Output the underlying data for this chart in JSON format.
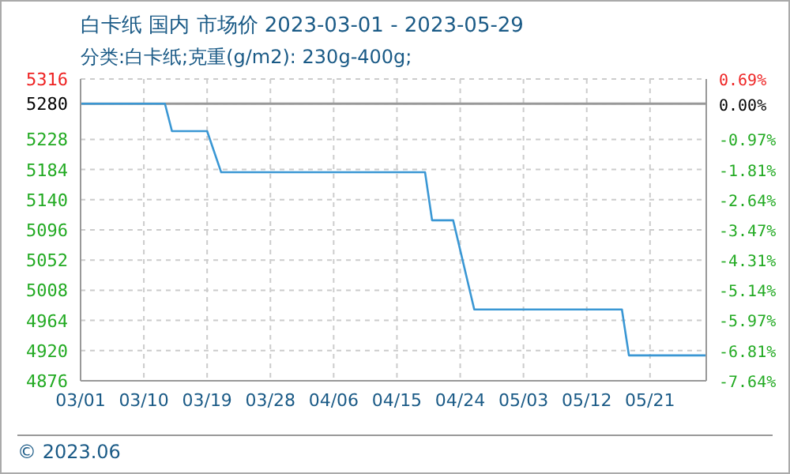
{
  "chart_data": {
    "type": "line",
    "title": "白卡纸 国内 市场价 2023-03-01 - 2023-05-29",
    "subtitle": "分类:白卡纸;克重(g/m2): 230g-400g;",
    "annotations": [
      "© 2023.06"
    ],
    "x": [
      "2023-03-01",
      "2023-03-13",
      "2023-03-14",
      "2023-03-19",
      "2023-03-21",
      "2023-04-19",
      "2023-04-20",
      "2023-04-23",
      "2023-04-26",
      "2023-05-17",
      "2023-05-18",
      "2023-05-29"
    ],
    "series": [
      {
        "color": "#3a97d4",
        "values": [
          5280,
          5280,
          5240,
          5240,
          5180,
          5180,
          5110,
          5110,
          4980,
          4980,
          4913,
          4913
        ]
      }
    ],
    "xlim": [
      "2023-03-01",
      "2023-05-29"
    ],
    "xticks": [
      {
        "value": "2023-03-01",
        "label": "03/01"
      },
      {
        "value": "2023-03-10",
        "label": "03/10"
      },
      {
        "value": "2023-03-19",
        "label": "03/19"
      },
      {
        "value": "2023-03-28",
        "label": "03/28"
      },
      {
        "value": "2023-04-06",
        "label": "04/06"
      },
      {
        "value": "2023-04-15",
        "label": "04/15"
      },
      {
        "value": "2023-04-24",
        "label": "04/24"
      },
      {
        "value": "2023-05-03",
        "label": "05/03"
      },
      {
        "value": "2023-05-12",
        "label": "05/12"
      },
      {
        "value": "2023-05-21",
        "label": "05/21"
      }
    ],
    "ylim": [
      4876,
      5316
    ],
    "yticks": [
      4876,
      4920,
      4964,
      5008,
      5052,
      5096,
      5140,
      5184,
      5228,
      5280,
      5316
    ],
    "y2lim": [
      -7.64,
      0.69
    ],
    "y2ticks": [
      {
        "value": -7.64,
        "label": "-7.64%"
      },
      {
        "value": -6.81,
        "label": "-6.81%"
      },
      {
        "value": -5.97,
        "label": "-5.97%"
      },
      {
        "value": -5.14,
        "label": "-5.14%"
      },
      {
        "value": -4.31,
        "label": "-4.31%"
      },
      {
        "value": -3.47,
        "label": "-3.47%"
      },
      {
        "value": -2.64,
        "label": "-2.64%"
      },
      {
        "value": -1.81,
        "label": "-1.81%"
      },
      {
        "value": -0.97,
        "label": "-0.97%"
      },
      {
        "value": 0,
        "label": "0.00%"
      },
      {
        "value": 0.69,
        "label": "0.69%"
      }
    ],
    "ref_lines": [
      {
        "axis": "y",
        "value": 5280,
        "color": "#999999"
      }
    ],
    "grid": true,
    "legend": false,
    "marker": "none",
    "line_style": "solid"
  }
}
